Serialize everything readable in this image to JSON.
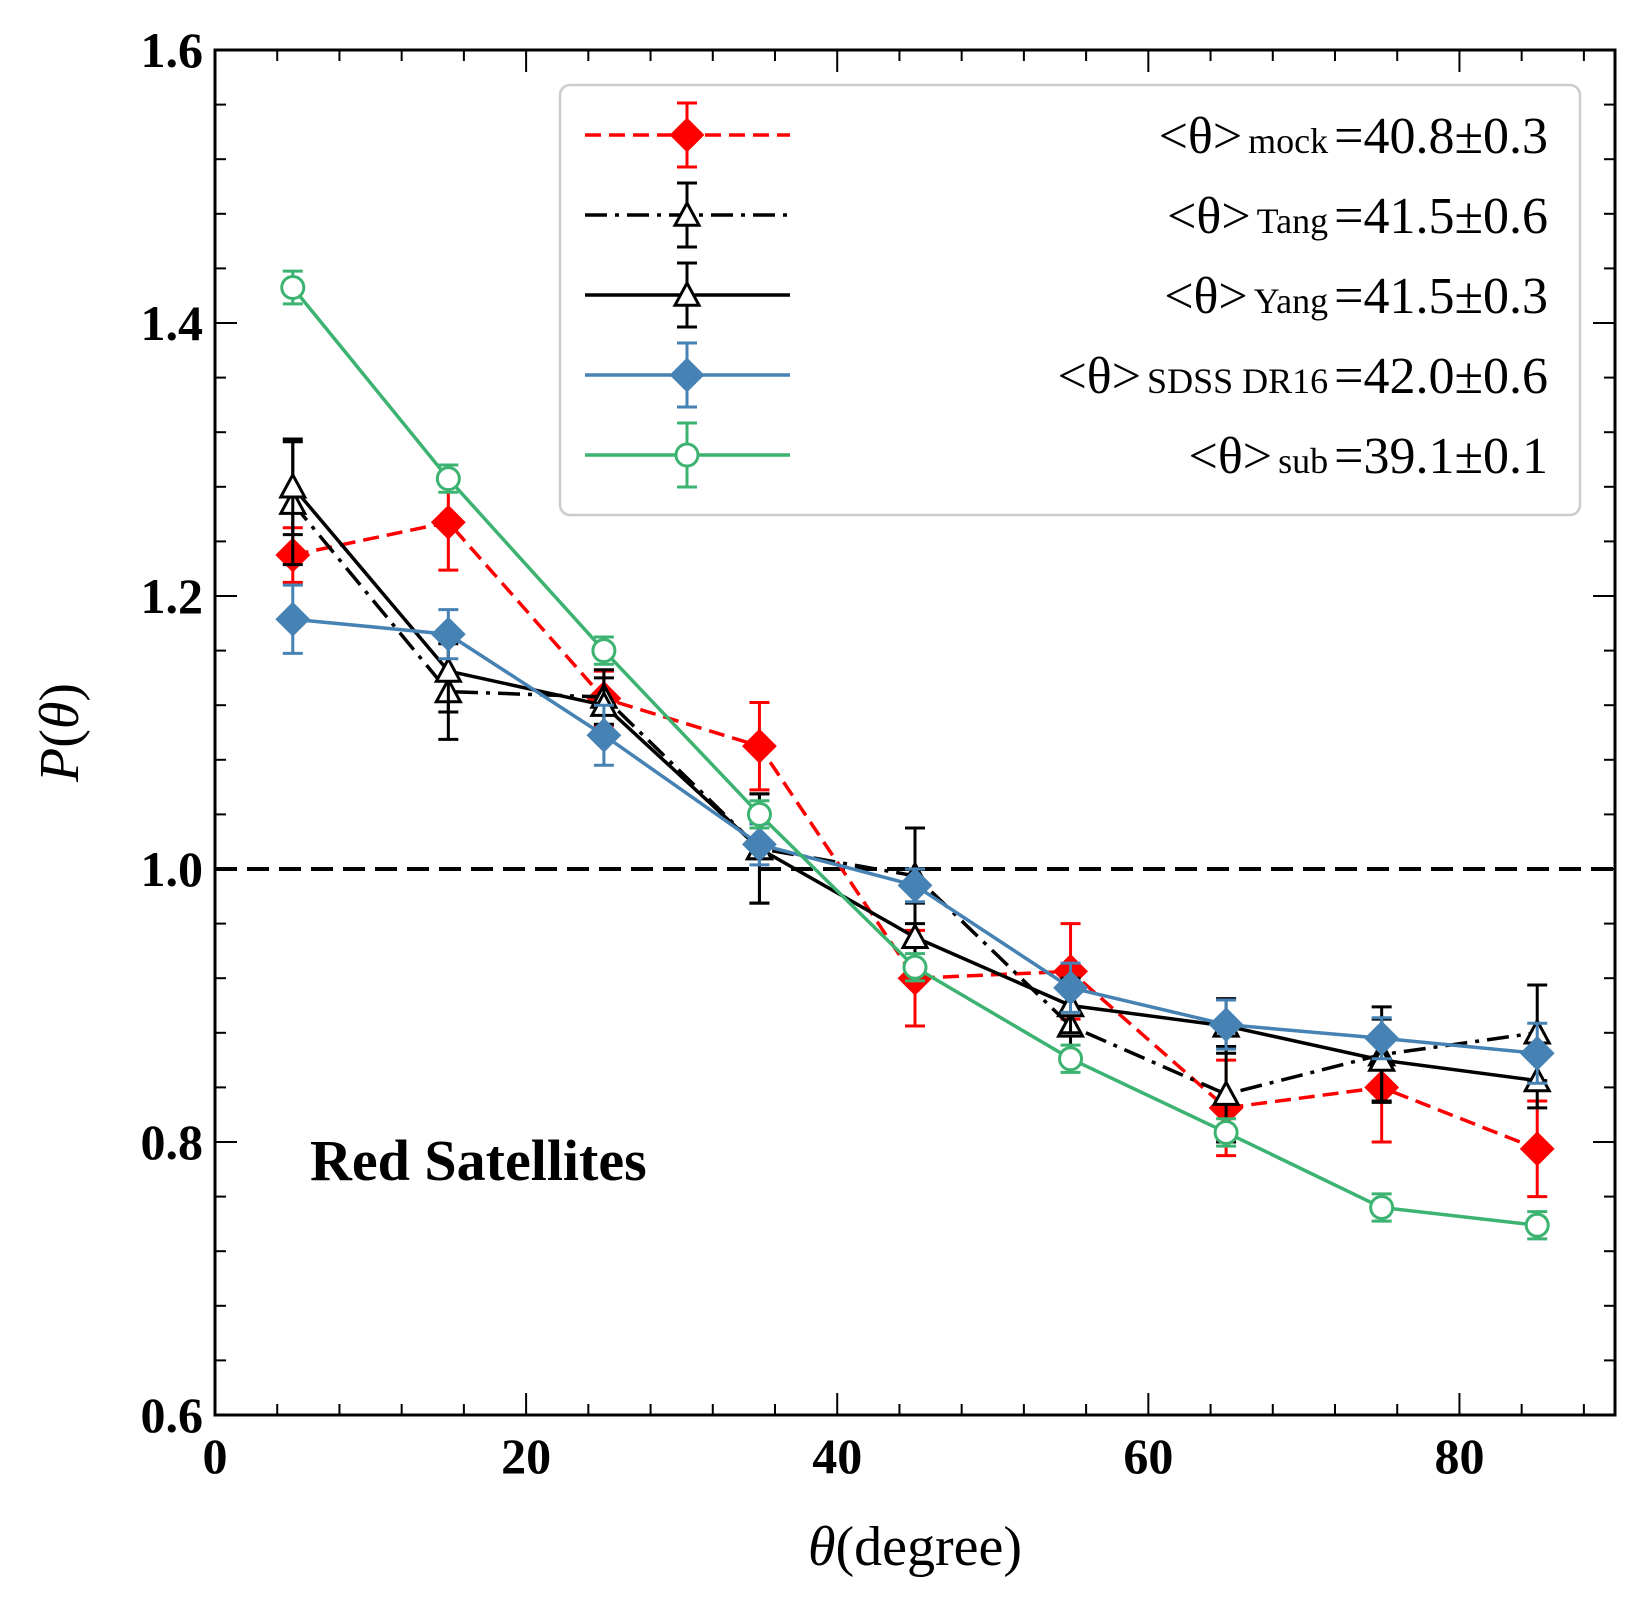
{
  "chart_data": {
    "type": "line",
    "title": "",
    "xlabel": "θ(degree)",
    "ylabel": "P(θ)",
    "xlim": [
      0,
      90
    ],
    "ylim": [
      0.6,
      1.6
    ],
    "x_ticks": [
      0,
      20,
      40,
      60,
      80
    ],
    "x_tick_labels": [
      "0",
      "20",
      "40",
      "60",
      "80"
    ],
    "y_ticks": [
      0.6,
      0.8,
      1.0,
      1.2,
      1.4,
      1.6
    ],
    "y_tick_labels": [
      "0.6",
      "0.8",
      "1.0",
      "1.2",
      "1.4",
      "1.6"
    ],
    "reference_line": {
      "y": 1.0,
      "style": "dashed",
      "color": "#000000"
    },
    "annotation": "Red Satellites",
    "legend_position": "top-right",
    "x": [
      5,
      15,
      25,
      35,
      45,
      55,
      65,
      75,
      85
    ],
    "series": [
      {
        "name": "mock",
        "legend_prefix": "<θ>",
        "legend_sub": "mock",
        "legend_value": "=40.8±0.3",
        "color": "#ff0000",
        "line": "dashed",
        "marker": "diamond-filled",
        "values": [
          1.23,
          1.254,
          1.125,
          1.09,
          0.92,
          0.925,
          0.825,
          0.84,
          0.795
        ],
        "errors": [
          0.02,
          0.035,
          0.02,
          0.032,
          0.035,
          0.035,
          0.035,
          0.04,
          0.035
        ]
      },
      {
        "name": "Tang",
        "legend_prefix": "<θ>",
        "legend_sub": "Tang",
        "legend_value": "=41.5±0.6",
        "color": "#000000",
        "line": "dashdot",
        "marker": "triangle-open",
        "values": [
          1.268,
          1.13,
          1.126,
          1.015,
          0.995,
          0.885,
          0.835,
          0.864,
          0.88
        ],
        "errors": [
          0.045,
          0.035,
          0.02,
          0.04,
          0.035,
          0.025,
          0.035,
          0.035,
          0.035
        ]
      },
      {
        "name": "Yang",
        "legend_prefix": "<θ>",
        "legend_sub": "Yang",
        "legend_value": "=41.5±0.3",
        "color": "#000000",
        "line": "solid",
        "marker": "triangle-open",
        "values": [
          1.28,
          1.145,
          1.12,
          1.015,
          0.95,
          0.9,
          0.885,
          0.86,
          0.845
        ],
        "errors": [
          0.035,
          0.03,
          0.02,
          0.04,
          0.025,
          0.02,
          0.02,
          0.03,
          0.02
        ]
      },
      {
        "name": "SDSS DR16",
        "legend_prefix": "<θ>",
        "legend_sub": "SDSS DR16",
        "legend_value": "=42.0±0.6",
        "color": "#4682b4",
        "line": "solid",
        "marker": "diamond-filled",
        "values": [
          1.183,
          1.172,
          1.098,
          1.018,
          0.988,
          0.913,
          0.886,
          0.876,
          0.865
        ],
        "errors": [
          0.025,
          0.018,
          0.022,
          0.015,
          0.012,
          0.018,
          0.018,
          0.015,
          0.022
        ]
      },
      {
        "name": "sub",
        "legend_prefix": "<θ>",
        "legend_sub": "sub",
        "legend_value": "=39.1±0.1",
        "color": "#3cb371",
        "line": "solid",
        "marker": "circle-open",
        "values": [
          1.426,
          1.286,
          1.16,
          1.04,
          0.928,
          0.861,
          0.807,
          0.752,
          0.739
        ],
        "errors": [
          0.012,
          0.01,
          0.01,
          0.01,
          0.01,
          0.01,
          0.01,
          0.01,
          0.01
        ]
      }
    ]
  }
}
